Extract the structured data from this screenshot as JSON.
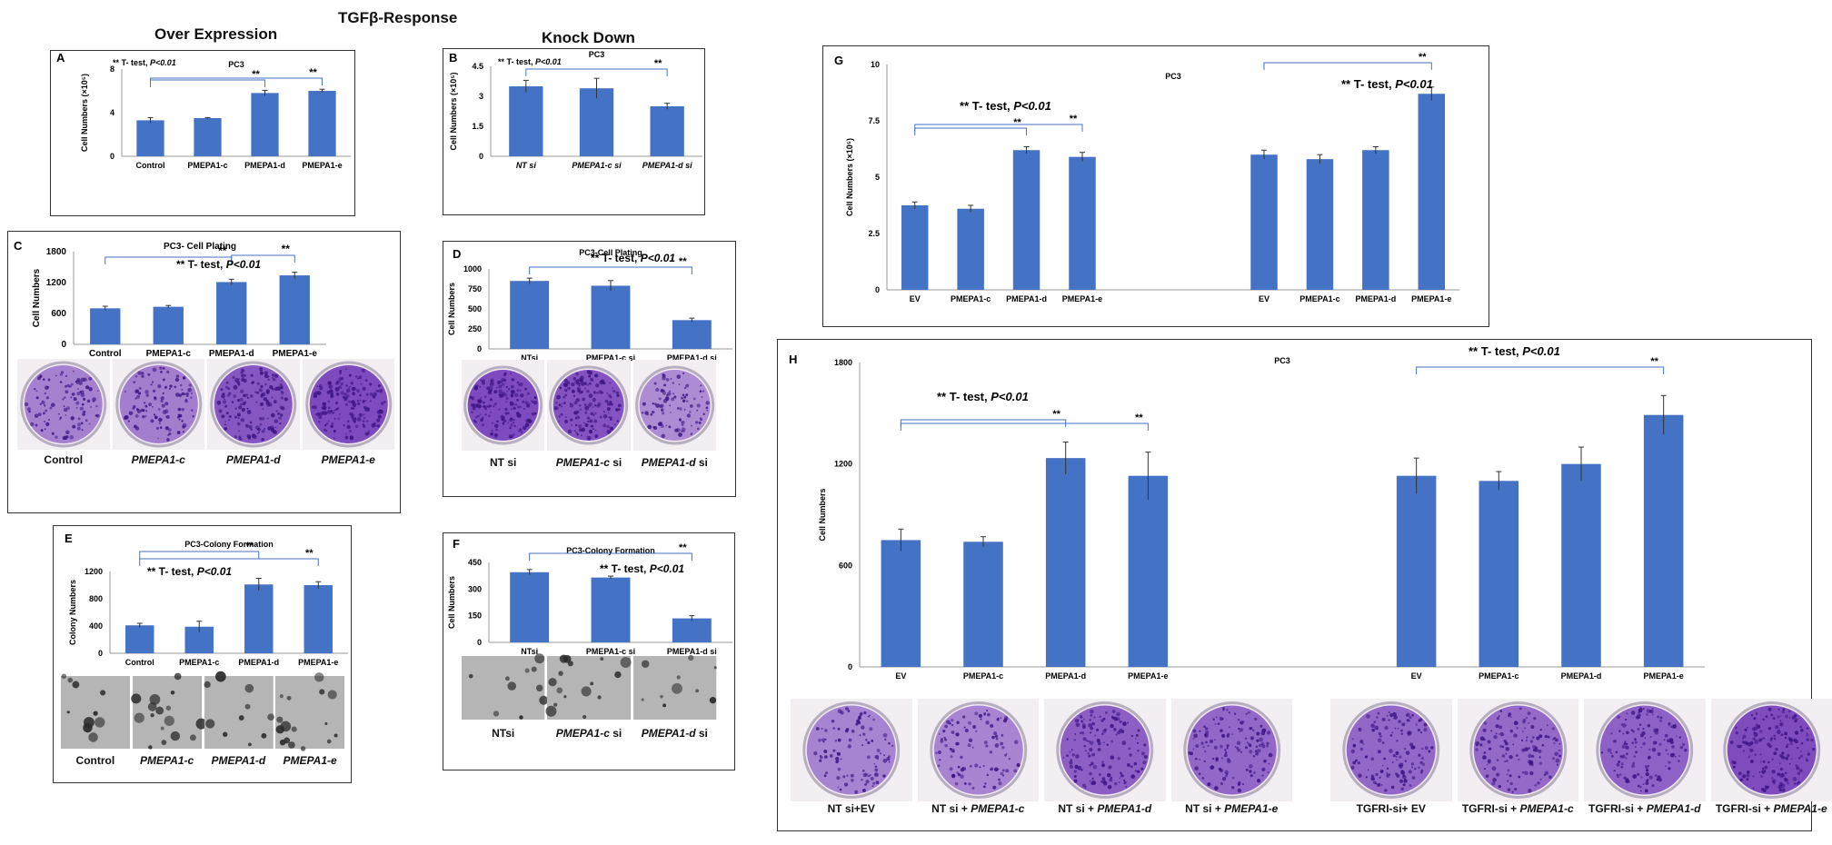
{
  "headers": {
    "top": "TGFβ-Response",
    "left": "Over Expression",
    "middle": "Knock Down"
  },
  "colors": {
    "bar": "#4472c4",
    "bracket": "#4472c4",
    "stain": "#6a2fb5"
  },
  "significance": {
    "stars": "**",
    "prefix": "** T- test, ",
    "p": "P<0.01"
  },
  "panels": {
    "A": {
      "letter": "A",
      "chart_data": {
        "type": "bar",
        "title": "PC3",
        "ylabel": "Cell Numbers (×10⁵)",
        "categories": [
          "Control",
          "PMEPA1-c",
          "PMEPA1-d",
          "PMEPA1-e"
        ],
        "values": [
          3.3,
          3.5,
          5.8,
          6.0
        ],
        "errors": [
          0.25,
          0.05,
          0.25,
          0.15
        ],
        "ylim": [
          0,
          8
        ],
        "yticks": [
          "0",
          "4",
          "8"
        ]
      }
    },
    "B": {
      "letter": "B",
      "chart_data": {
        "type": "bar",
        "title": "PC3",
        "ylabel": "Cell Numbers (×10⁵)",
        "categories": [
          "NT si",
          "PMEPA1-c si",
          "PMEPA1-d si"
        ],
        "values": [
          3.5,
          3.4,
          2.5
        ],
        "errors": [
          0.3,
          0.5,
          0.15
        ],
        "ylim": [
          0,
          4.5
        ],
        "yticks": [
          "0",
          "1.5",
          "3",
          "4.5"
        ]
      }
    },
    "C": {
      "letter": "C",
      "chart_data": {
        "type": "bar",
        "title": "PC3- Cell Plating",
        "ylabel": "Cell Numbers",
        "categories": [
          "Control",
          "PMEPA1-c",
          "PMEPA1-d",
          "PMEPA1-e"
        ],
        "values": [
          700,
          730,
          1210,
          1340
        ],
        "errors": [
          40,
          25,
          55,
          60
        ],
        "ylim": [
          0,
          1800
        ],
        "yticks": [
          "0",
          "600",
          "1200",
          "1800"
        ]
      },
      "captions": [
        "Control",
        "PMEPA1-c",
        "PMEPA1-d",
        "PMEPA1-e"
      ]
    },
    "D": {
      "letter": "D",
      "chart_data": {
        "type": "bar",
        "title": "PC3-Cell Plating",
        "ylabel": "Cell Numbers",
        "categories": [
          "NTsi",
          "PMEPA1-c si",
          "PMEPA1-d si"
        ],
        "values": [
          850,
          790,
          360
        ],
        "errors": [
          35,
          65,
          25
        ],
        "ylim": [
          0,
          1000
        ],
        "yticks": [
          "0",
          "250",
          "500",
          "750",
          "1000"
        ]
      },
      "captions": [
        {
          "a": "NT si",
          "b": ""
        },
        {
          "a": "PMEPA1-c",
          "b": " si"
        },
        {
          "a": "PMEPA1-d",
          "b": " si"
        }
      ]
    },
    "E": {
      "letter": "E",
      "chart_data": {
        "type": "bar",
        "title": "PC3-Colony Formation",
        "ylabel": "Colony Numbers",
        "categories": [
          "Control",
          "PMEPA1-c",
          "PMEPA1-d",
          "PMEPA1-e"
        ],
        "values": [
          410,
          390,
          1010,
          1000
        ],
        "errors": [
          30,
          80,
          90,
          50
        ],
        "ylim": [
          0,
          1200
        ],
        "yticks": [
          "0",
          "400",
          "800",
          "1200"
        ]
      },
      "captions": [
        "Control",
        "PMEPA1-c",
        "PMEPA1-d",
        "PMEPA1-e"
      ]
    },
    "F": {
      "letter": "F",
      "chart_data": {
        "type": "bar",
        "title": "PC3-Colony Formation",
        "ylabel": "Cell Numbers",
        "categories": [
          "NTsi",
          "PMEPA1-c si",
          "PMEPA1-d si"
        ],
        "values": [
          395,
          365,
          135
        ],
        "errors": [
          15,
          8,
          15
        ],
        "ylim": [
          0,
          450
        ],
        "yticks": [
          "0",
          "150",
          "300",
          "450"
        ]
      },
      "captions": [
        {
          "a": "NTsi",
          "b": ""
        },
        {
          "a": "PMEPA1-c",
          "b": " si"
        },
        {
          "a": "PMEPA1-d",
          "b": " si"
        }
      ]
    },
    "G": {
      "letter": "G",
      "chart_data": {
        "type": "bar",
        "title": "PC3",
        "ylabel": "Cell Numbers (×10⁵)",
        "categories": [
          "EV",
          "PMEPA1-c",
          "PMEPA1-d",
          "PMEPA1-e",
          "EV",
          "PMEPA1-c",
          "PMEPA1-d",
          "PMEPA1-e"
        ],
        "values": [
          3.75,
          3.6,
          6.2,
          5.9,
          6.0,
          5.8,
          6.2,
          8.7
        ],
        "errors": [
          0.15,
          0.15,
          0.15,
          0.2,
          0.2,
          0.2,
          0.15,
          0.3
        ],
        "ylim": [
          0,
          10
        ],
        "yticks": [
          "0",
          "2.5",
          "5",
          "7.5",
          "10"
        ]
      }
    },
    "H": {
      "letter": "H",
      "chart_data": {
        "type": "bar",
        "title": "PC3",
        "ylabel": "Cell Numbers",
        "categories": [
          "EV",
          "PMEPA1-c",
          "PMEPA1-d",
          "PMEPA1-e",
          "EV",
          "PMEPA1-c",
          "PMEPA1-d",
          "PMEPA1-e"
        ],
        "values": [
          750,
          740,
          1235,
          1130,
          1130,
          1100,
          1200,
          1490
        ],
        "errors": [
          65,
          30,
          95,
          140,
          105,
          55,
          100,
          115
        ],
        "ylim": [
          0,
          1800
        ],
        "yticks": [
          "0",
          "600",
          "1200",
          "1800"
        ]
      },
      "captions": [
        {
          "a": "NT si+EV",
          "b": ""
        },
        {
          "a": "NT si + ",
          "b": "PMEPA1-c"
        },
        {
          "a": "NT si + ",
          "b": "PMEPA1-d"
        },
        {
          "a": "NT si + ",
          "b": "PMEPA1-e"
        },
        {
          "a": "TGFRI-si+ EV",
          "b": ""
        },
        {
          "a": "TGFRI-si + ",
          "b": "PMEPA1-c"
        },
        {
          "a": "TGFRI-si + ",
          "b": "PMEPA1-d"
        },
        {
          "a": "TGFRI-si + ",
          "b": "PMEPA1-e"
        }
      ]
    }
  }
}
